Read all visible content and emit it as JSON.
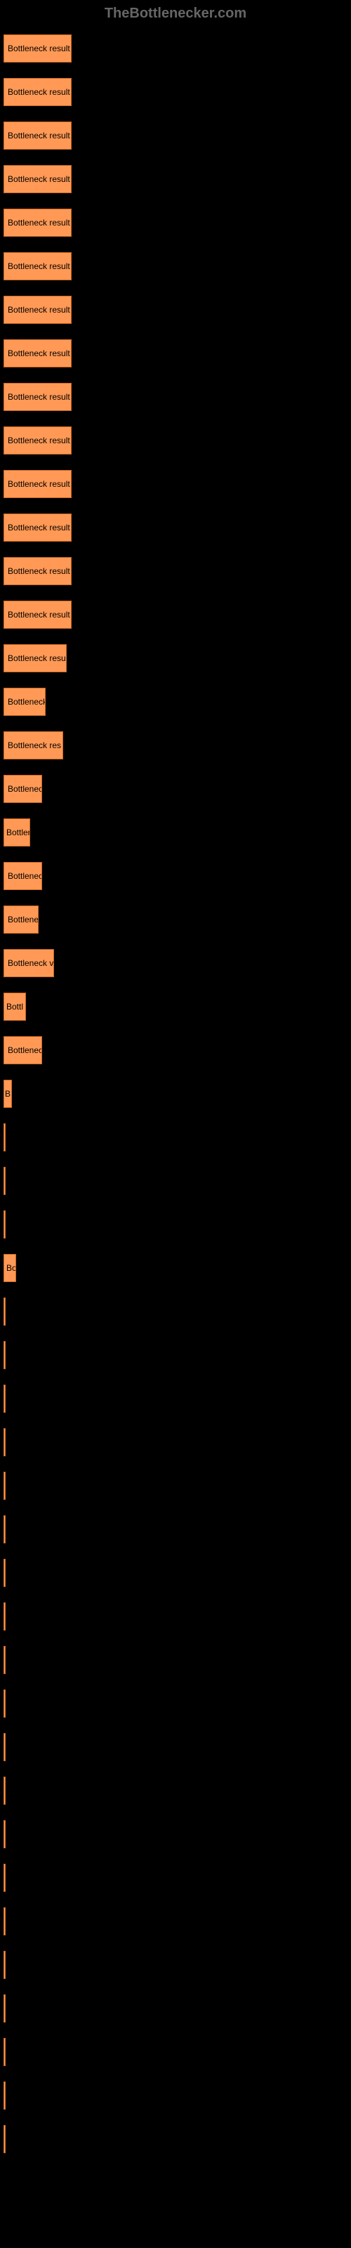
{
  "header": {
    "title": "TheBottlenecker.com"
  },
  "chart": {
    "bar_color": "#ff9955",
    "bar_border": "#cc6622",
    "background": "#000000",
    "label_color": "#000000",
    "bars": [
      {
        "label": "Bottleneck result",
        "width": 97
      },
      {
        "label": "Bottleneck result",
        "width": 97
      },
      {
        "label": "Bottleneck result",
        "width": 97
      },
      {
        "label": "Bottleneck result",
        "width": 97
      },
      {
        "label": "Bottleneck result",
        "width": 97
      },
      {
        "label": "Bottleneck result",
        "width": 97
      },
      {
        "label": "Bottleneck result",
        "width": 97
      },
      {
        "label": "Bottleneck result",
        "width": 97
      },
      {
        "label": "Bottleneck result",
        "width": 97
      },
      {
        "label": "Bottleneck result",
        "width": 97
      },
      {
        "label": "Bottleneck result",
        "width": 97
      },
      {
        "label": "Bottleneck result",
        "width": 97
      },
      {
        "label": "Bottleneck result",
        "width": 97
      },
      {
        "label": "Bottleneck result",
        "width": 97
      },
      {
        "label": "Bottleneck resu",
        "width": 90
      },
      {
        "label": "Bottleneck",
        "width": 60
      },
      {
        "label": "Bottleneck res",
        "width": 85
      },
      {
        "label": "Bottlenec",
        "width": 55
      },
      {
        "label": "Bottler",
        "width": 38
      },
      {
        "label": "Bottlenec",
        "width": 55
      },
      {
        "label": "Bottlene",
        "width": 50
      },
      {
        "label": "Bottleneck v",
        "width": 72
      },
      {
        "label": "Bottl",
        "width": 32
      },
      {
        "label": "Bottlenec",
        "width": 55
      },
      {
        "label": "B",
        "width": 12
      },
      {
        "label": "",
        "width": 3
      },
      {
        "label": "",
        "width": 3
      },
      {
        "label": "",
        "width": 3
      },
      {
        "label": "Bo",
        "width": 18
      },
      {
        "label": "",
        "width": 3
      },
      {
        "label": "",
        "width": 3
      },
      {
        "label": "",
        "width": 3
      },
      {
        "label": "",
        "width": 3
      },
      {
        "label": "",
        "width": 3
      },
      {
        "label": "",
        "width": 3
      },
      {
        "label": "",
        "width": 3
      },
      {
        "label": "",
        "width": 3
      },
      {
        "label": "",
        "width": 3
      },
      {
        "label": "",
        "width": 3
      },
      {
        "label": "",
        "width": 3
      },
      {
        "label": "",
        "width": 3
      },
      {
        "label": "",
        "width": 3
      },
      {
        "label": "",
        "width": 3
      },
      {
        "label": "",
        "width": 3
      },
      {
        "label": "",
        "width": 3
      },
      {
        "label": "",
        "width": 3
      },
      {
        "label": "",
        "width": 3
      },
      {
        "label": "",
        "width": 3
      },
      {
        "label": "",
        "width": 3
      }
    ]
  }
}
